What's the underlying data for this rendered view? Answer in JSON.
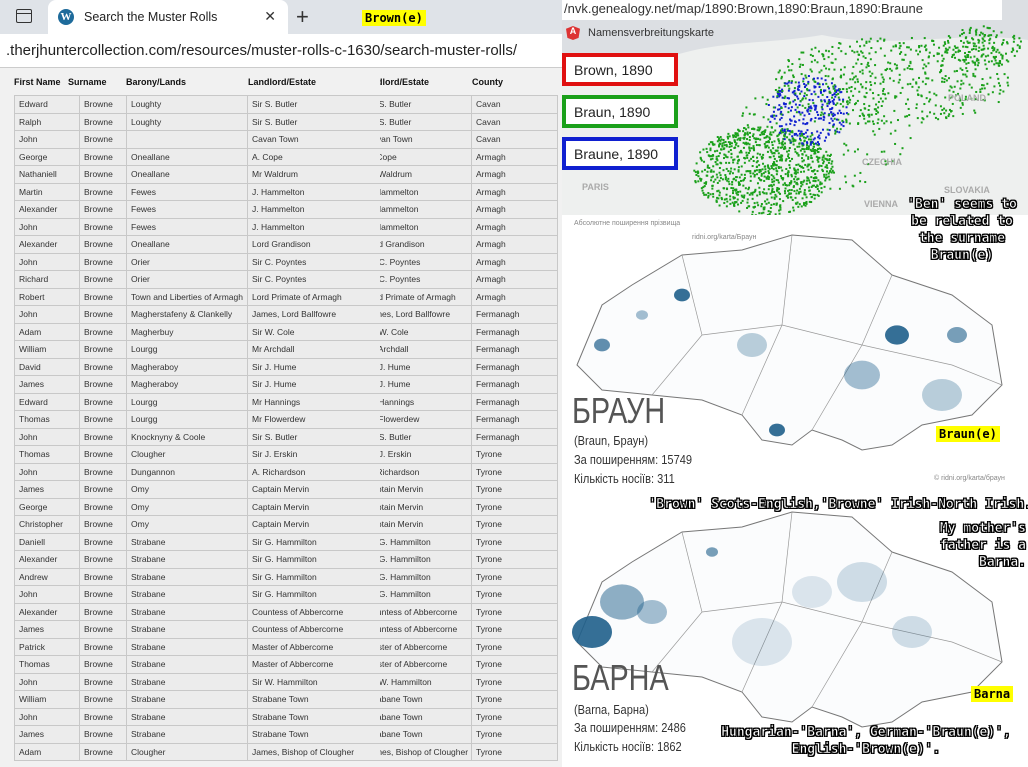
{
  "browser": {
    "tab_title": "Search the Muster Rolls",
    "url": ".therjhuntercollection.com/resources/muster-rolls-c-1630/search-muster-rolls/",
    "label": "Brown(e)"
  },
  "table": {
    "headers": {
      "first": "First Name",
      "surname": "Surname",
      "barony": "Barony/Lands",
      "landlord": "Landlord/Estate",
      "county": "County"
    },
    "rows": [
      [
        "Edward",
        "Browne",
        "Loughty",
        "Sir S. Butler",
        "Cavan"
      ],
      [
        "Ralph",
        "Browne",
        "Loughty",
        "Sir S. Butler",
        "Cavan"
      ],
      [
        "John",
        "Browne",
        "",
        "Cavan Town",
        "Cavan"
      ],
      [
        "George",
        "Browne",
        "Oneallane",
        "A. Cope",
        "Armagh"
      ],
      [
        "Nathaniell",
        "Browne",
        "Oneallane",
        "Mr Waldrum",
        "Armagh"
      ],
      [
        "Martin",
        "Browne",
        "Fewes",
        "J. Hammelton",
        "Armagh"
      ],
      [
        "Alexander",
        "Browne",
        "Fewes",
        "J. Hammelton",
        "Armagh"
      ],
      [
        "John",
        "Browne",
        "Fewes",
        "J. Hammelton",
        "Armagh"
      ],
      [
        "Alexander",
        "Browne",
        "Oneallane",
        "Lord Grandison",
        "Armagh"
      ],
      [
        "John",
        "Browne",
        "Orier",
        "Sir C. Poyntes",
        "Armagh"
      ],
      [
        "Richard",
        "Browne",
        "Orier",
        "Sir C. Poyntes",
        "Armagh"
      ],
      [
        "Robert",
        "Browne",
        "Town and Liberties of Armagh",
        "Lord Primate of Armagh",
        "Armagh"
      ],
      [
        "John",
        "Browne",
        "Magherstafeny & Clankelly",
        "James, Lord Ballfowre",
        "Fermanagh"
      ],
      [
        "Adam",
        "Browne",
        "Magherbuy",
        "Sir W. Cole",
        "Fermanagh"
      ],
      [
        "William",
        "Browne",
        "Lourgg",
        "Mr Archdall",
        "Fermanagh"
      ],
      [
        "David",
        "Browne",
        "Magheraboy",
        "Sir J. Hume",
        "Fermanagh"
      ],
      [
        "James",
        "Browne",
        "Magheraboy",
        "Sir J. Hume",
        "Fermanagh"
      ],
      [
        "Edward",
        "Browne",
        "Lourgg",
        "Mr Hannings",
        "Fermanagh"
      ],
      [
        "Thomas",
        "Browne",
        "Lourgg",
        "Mr Flowerdew",
        "Fermanagh"
      ],
      [
        "John",
        "Browne",
        "Knocknyny & Coole",
        "Sir S. Butler",
        "Fermanagh"
      ],
      [
        "Thomas",
        "Browne",
        "Clougher",
        "Sir J. Erskin",
        "Tyrone"
      ],
      [
        "John",
        "Browne",
        "Dungannon",
        "A. Richardson",
        "Tyrone"
      ],
      [
        "James",
        "Browne",
        "Omy",
        "Captain Mervin",
        "Tyrone"
      ],
      [
        "George",
        "Browne",
        "Omy",
        "Captain Mervin",
        "Tyrone"
      ],
      [
        "Christopher",
        "Browne",
        "Omy",
        "Captain Mervin",
        "Tyrone"
      ],
      [
        "Daniell",
        "Browne",
        "Strabane",
        "Sir G. Hammilton",
        "Tyrone"
      ],
      [
        "Alexander",
        "Browne",
        "Strabane",
        "Sir G. Hammilton",
        "Tyrone"
      ],
      [
        "Andrew",
        "Browne",
        "Strabane",
        "Sir G. Hammilton",
        "Tyrone"
      ],
      [
        "John",
        "Browne",
        "Strabane",
        "Sir G. Hammilton",
        "Tyrone"
      ],
      [
        "Alexander",
        "Browne",
        "Strabane",
        "Countess of Abbercorne",
        "Tyrone"
      ],
      [
        "James",
        "Browne",
        "Strabane",
        "Countess of Abbercorne",
        "Tyrone"
      ],
      [
        "Patrick",
        "Browne",
        "Strabane",
        "Master of Abbercorne",
        "Tyrone"
      ],
      [
        "Thomas",
        "Browne",
        "Strabane",
        "Master of Abbercorne",
        "Tyrone"
      ],
      [
        "John",
        "Browne",
        "Strabane",
        "Sir W. Hammilton",
        "Tyrone"
      ],
      [
        "William",
        "Browne",
        "Strabane",
        "Strabane Town",
        "Tyrone"
      ],
      [
        "John",
        "Browne",
        "Strabane",
        "Strabane Town",
        "Tyrone"
      ],
      [
        "James",
        "Browne",
        "Strabane",
        "Strabane Town",
        "Tyrone"
      ],
      [
        "Adam",
        "Browne",
        "Clougher",
        "James, Bishop of Clougher",
        "Tyrone"
      ]
    ]
  },
  "germany_map": {
    "url": "/nvk.genealogy.net/map/1890:Brown,1890:Braun,1890:Braune",
    "title": "Namensverbreitungskarte",
    "legend": [
      {
        "label": "Brown, 1890",
        "color": "#e01010"
      },
      {
        "label": "Braun, 1890",
        "color": "#1aa01a"
      },
      {
        "label": "Braune, 1890",
        "color": "#1020d0"
      }
    ],
    "places": [
      "POLAND",
      "CZECHIA",
      "PARIS",
      "SLOVAKIA",
      "VIENNA"
    ]
  },
  "braun_map": {
    "header": "Абсолютне поширення прізвища",
    "src": "ridni.org/karta/Браун",
    "name": "БРАУН",
    "variants": "(Braun, Браун)",
    "rank": "За поширенням: 15749",
    "carriers": "Кількість носіїв:  311",
    "credit": "© ridni.org/karta/браун",
    "shade": "#1f5f8b"
  },
  "barna_map": {
    "name": "БАРНА",
    "variants": "(Barna, Барна)",
    "rank": "За поширенням: 2486",
    "carriers": "Кількість носіїв:  1862"
  },
  "captions": {
    "ben": "'Ben' seems to be related to the surname Braun(e)",
    "braune_label": "Braun(e)",
    "brown_note": "'Brown' Scots-English,'Browne' Irish-North Irish.",
    "mother": "My mother's father is a Barna.",
    "barna_label": "Barna",
    "origin": "Hungarian-'Barna', German-'Braun(e)', English-'Brown(e)'."
  }
}
